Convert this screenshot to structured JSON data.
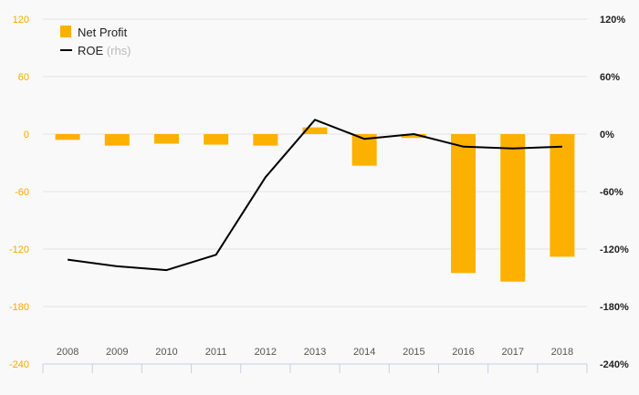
{
  "chart_data": {
    "type": "bar",
    "categories": [
      "2008",
      "2009",
      "2010",
      "2011",
      "2012",
      "2013",
      "2014",
      "2015",
      "2016",
      "2017",
      "2018"
    ],
    "series": [
      {
        "name": "Net Profit",
        "axis": "left",
        "type": "bar",
        "color": "#fcb100",
        "values": [
          -6,
          -12,
          -10,
          -11,
          -12,
          7,
          -33,
          -4,
          -145,
          -154,
          -128
        ]
      },
      {
        "name": "ROE",
        "axis": "right",
        "type": "line",
        "color": "#000000",
        "values": [
          -131,
          -138,
          -142,
          -126,
          -45,
          15,
          -5,
          0,
          -13,
          -15,
          -13
        ]
      }
    ],
    "legend": {
      "items": [
        {
          "label": "Net Profit",
          "suffix": ""
        },
        {
          "label": "ROE",
          "suffix": "(rhs)"
        }
      ],
      "position": "top-left"
    },
    "left_axis": {
      "ylim": [
        -240,
        120
      ],
      "ticks": [
        "120",
        "60",
        "0",
        "-60",
        "-120",
        "-180",
        "-240"
      ]
    },
    "right_axis": {
      "ylim": [
        -240,
        120
      ],
      "unit": "%",
      "ticks": [
        "120%",
        "60%",
        "0%",
        "-60%",
        "-120%",
        "-180%",
        "-240%"
      ]
    },
    "grid": true
  }
}
